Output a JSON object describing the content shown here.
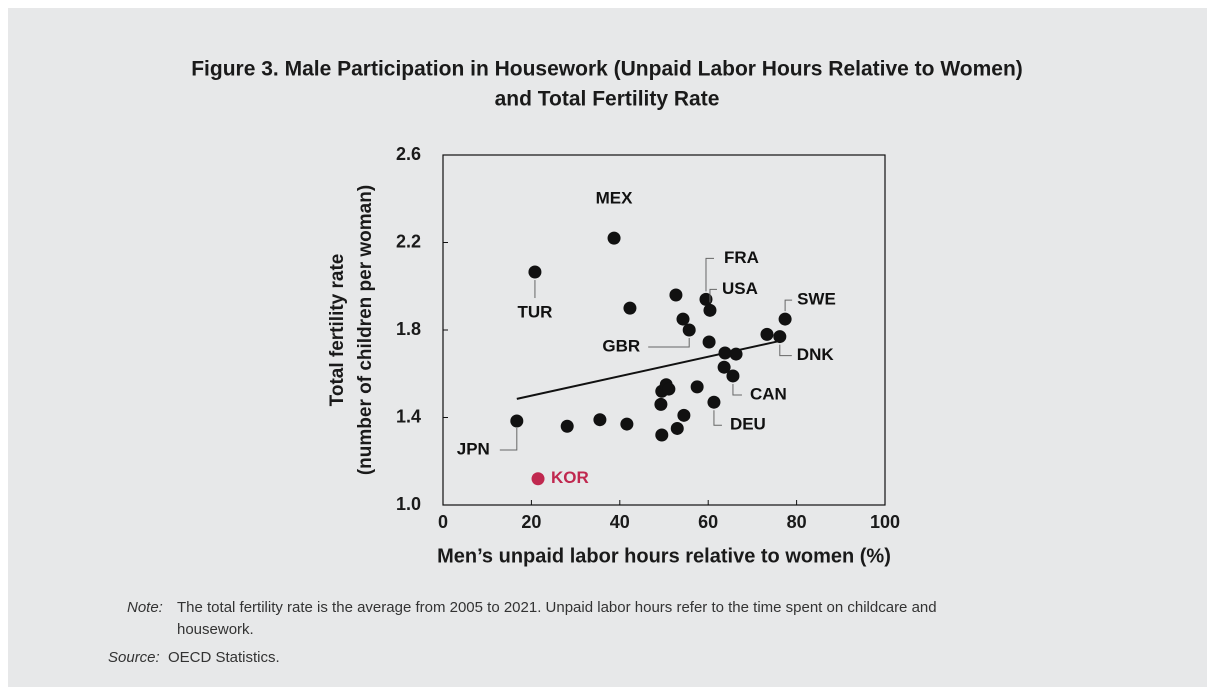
{
  "chart_data": {
    "type": "scatter",
    "title": [
      "Figure 3. Male Participation in Housework (Unpaid Labor Hours Relative to Women)",
      "and Total Fertility Rate"
    ],
    "xlabel": "Men’s unpaid labor hours relative to women (%)",
    "ylabel": [
      "Total fertility rate",
      "(number of children per woman)"
    ],
    "xlim": [
      0,
      100
    ],
    "ylim": [
      1.0,
      2.6
    ],
    "xticks": [
      0,
      20,
      40,
      60,
      80,
      100
    ],
    "yticks": [
      {
        "value": 1.0,
        "label": "1.0"
      },
      1.4,
      1.8,
      2.2,
      2.6
    ],
    "x": [
      20.8,
      38.7,
      16.7,
      21.5,
      28.1,
      35.5,
      41.6,
      42.3,
      49.5,
      49.3,
      49.5,
      50.5,
      51.1,
      52.7,
      53.0,
      54.3,
      54.5,
      55.7,
      57.5,
      59.5,
      60.4,
      60.2,
      61.3,
      63.8,
      63.6,
      65.6,
      66.3,
      73.3,
      76.2,
      77.4
    ],
    "y": [
      2.065,
      2.22,
      1.384,
      1.12,
      1.36,
      1.39,
      1.37,
      1.9,
      1.32,
      1.46,
      1.52,
      1.55,
      1.53,
      1.96,
      1.35,
      1.85,
      1.41,
      1.8,
      1.54,
      1.94,
      1.89,
      1.745,
      1.47,
      1.695,
      1.63,
      1.59,
      1.69,
      1.78,
      1.77,
      1.85
    ],
    "labels": [
      "TUR",
      "MEX",
      "JPN",
      "KOR",
      null,
      null,
      null,
      null,
      null,
      null,
      null,
      null,
      null,
      null,
      null,
      null,
      null,
      "GBR",
      null,
      "FRA",
      "USA",
      null,
      "DEU",
      null,
      null,
      "CAN",
      null,
      null,
      "DNK",
      "SWE"
    ],
    "colors": [
      "#111111",
      "#111111",
      "#111111",
      "#c0284f",
      "#111111",
      "#111111",
      "#111111",
      "#111111",
      "#111111",
      "#111111",
      "#111111",
      "#111111",
      "#111111",
      "#111111",
      "#111111",
      "#111111",
      "#111111",
      "#111111",
      "#111111",
      "#111111",
      "#111111",
      "#111111",
      "#111111",
      "#111111",
      "#111111",
      "#111111",
      "#111111",
      "#111111",
      "#111111",
      "#111111"
    ],
    "trendline": {
      "x": [
        16.7,
        76.2
      ],
      "y": [
        1.485,
        1.75
      ]
    },
    "note_label": "Note:",
    "note_lines": [
      "The total fertility rate is the average from 2005 to 2021. Unpaid labor hours refer to the time spent on childcare and",
      "housework."
    ],
    "source_label": "Source:",
    "source": "OECD Statistics."
  }
}
